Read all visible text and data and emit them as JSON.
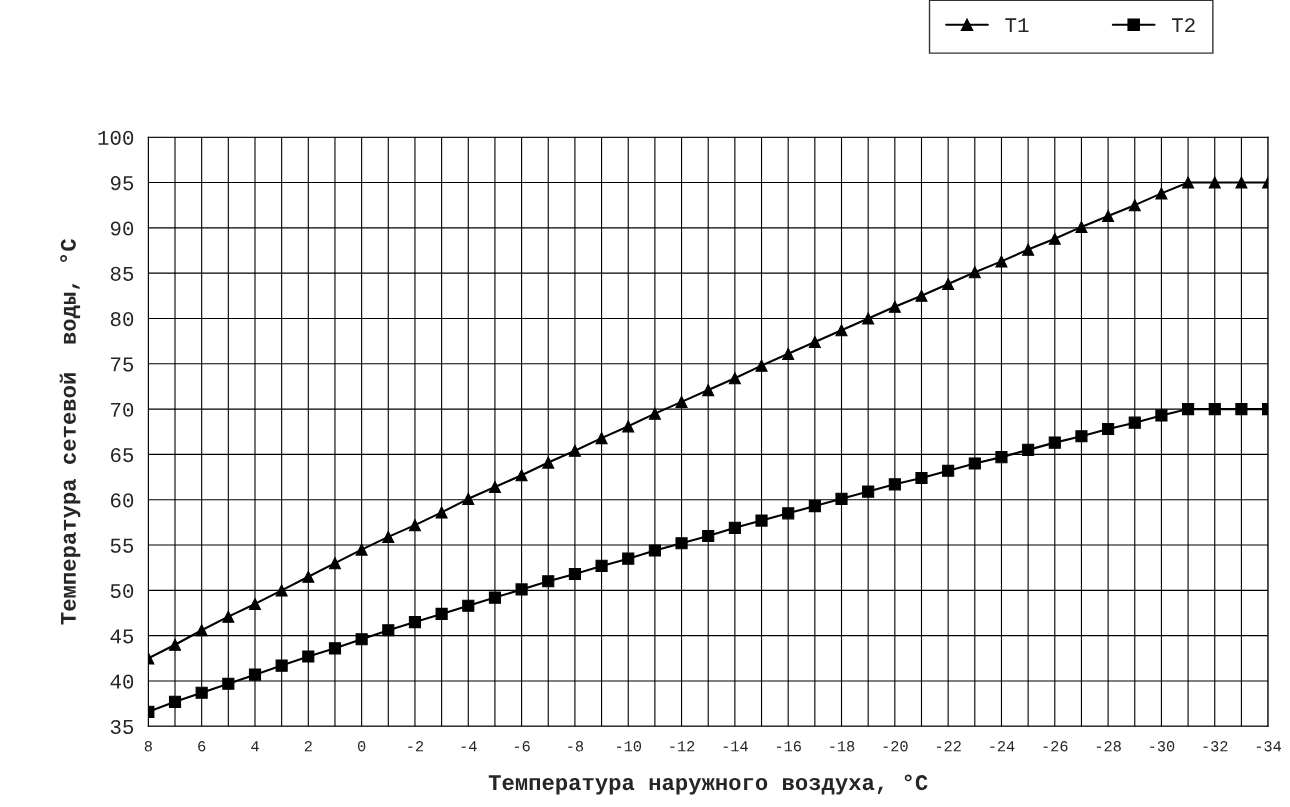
{
  "chart_data": {
    "type": "line",
    "xlabel": "Температура наружного воздуха, °C",
    "ylabel": "Температура сетевой  воды, °C",
    "categories": [
      "8",
      null,
      "6",
      null,
      "4",
      null,
      "2",
      null,
      "0",
      null,
      "-2",
      null,
      "-4",
      null,
      "-6",
      null,
      "-8",
      null,
      "-10",
      null,
      "-12",
      null,
      "-14",
      null,
      "-16",
      null,
      "-18",
      null,
      "-20",
      null,
      "-22",
      null,
      "-24",
      null,
      "-26",
      null,
      "-28",
      null,
      "-30",
      null,
      "-32",
      null,
      "-34"
    ],
    "series": [
      {
        "name": "T1",
        "color": "#000000",
        "marker": "triangle",
        "values": [
          42.5,
          44,
          45.6,
          47.1,
          48.5,
          50,
          51.5,
          53,
          54.5,
          55.9,
          57.2,
          58.6,
          60.1,
          61.4,
          62.7,
          64.1,
          65.4,
          66.8,
          68.1,
          69.5,
          70.8,
          72.1,
          73.4,
          74.8,
          76.1,
          77.4,
          78.7,
          80,
          81.3,
          82.5,
          83.8,
          85.1,
          86.3,
          87.6,
          88.8,
          90.1,
          91.3,
          92.5,
          93.8,
          95,
          95,
          95,
          95
        ]
      },
      {
        "name": "T2",
        "color": "#000000",
        "marker": "square",
        "values": [
          36.6,
          37.7,
          38.7,
          39.7,
          40.7,
          41.7,
          42.7,
          43.6,
          44.6,
          45.6,
          46.5,
          47.4,
          48.3,
          49.2,
          50.1,
          51,
          51.8,
          52.7,
          53.5,
          54.4,
          55.2,
          56,
          56.9,
          57.7,
          58.5,
          59.3,
          60.1,
          60.9,
          61.7,
          62.4,
          63.2,
          64,
          64.7,
          65.5,
          66.3,
          67,
          67.8,
          68.5,
          69.3,
          70,
          70,
          70,
          70
        ]
      }
    ],
    "ylim": [
      35,
      100
    ],
    "yticks": [
      35,
      40,
      45,
      50,
      55,
      60,
      65,
      70,
      75,
      80,
      85,
      90,
      95,
      100
    ],
    "grid": true,
    "legend": "top right",
    "line_style": "solid"
  }
}
